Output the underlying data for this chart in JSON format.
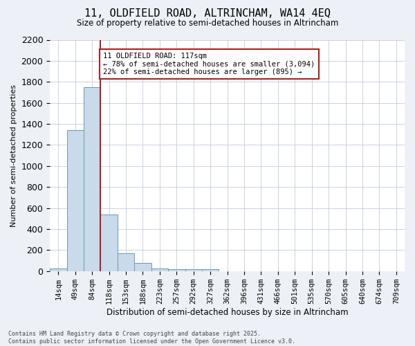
{
  "title": "11, OLDFIELD ROAD, ALTRINCHAM, WA14 4EQ",
  "subtitle": "Size of property relative to semi-detached houses in Altrincham",
  "xlabel": "Distribution of semi-detached houses by size in Altrincham",
  "ylabel": "Number of semi-detached properties",
  "bar_values": [
    25,
    1340,
    1750,
    540,
    170,
    80,
    25,
    20,
    20,
    15,
    0,
    0,
    0,
    0,
    0,
    0,
    0,
    0,
    0,
    0,
    0
  ],
  "categories": [
    "14sqm",
    "49sqm",
    "84sqm",
    "118sqm",
    "153sqm",
    "188sqm",
    "223sqm",
    "257sqm",
    "292sqm",
    "327sqm",
    "362sqm",
    "396sqm",
    "431sqm",
    "466sqm",
    "501sqm",
    "535sqm",
    "570sqm",
    "605sqm",
    "640sqm",
    "674sqm",
    "709sqm"
  ],
  "bar_color": "#c9daea",
  "bar_edge_color": "#6699bb",
  "highlight_line_color": "#aa2222",
  "annotation_text": "11 OLDFIELD ROAD: 117sqm\n← 78% of semi-detached houses are smaller (3,094)\n22% of semi-detached houses are larger (895) →",
  "annotation_box_color": "#ffffff",
  "annotation_box_edge_color": "#aa2222",
  "ylim": [
    0,
    2200
  ],
  "yticks": [
    0,
    200,
    400,
    600,
    800,
    1000,
    1200,
    1400,
    1600,
    1800,
    2000,
    2200
  ],
  "footer_text": "Contains HM Land Registry data © Crown copyright and database right 2025.\nContains public sector information licensed under the Open Government Licence v3.0.",
  "background_color": "#edf1f7",
  "plot_background_color": "#ffffff",
  "grid_color": "#c0ccdd"
}
